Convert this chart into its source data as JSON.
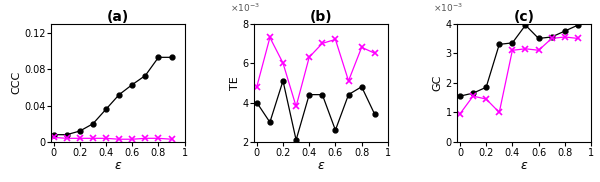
{
  "epsilon": [
    0.0,
    0.1,
    0.2,
    0.3,
    0.4,
    0.5,
    0.6,
    0.7,
    0.8,
    0.9
  ],
  "ccc_yx": [
    0.008,
    0.008,
    0.012,
    0.02,
    0.036,
    0.052,
    0.063,
    0.073,
    0.093,
    0.093
  ],
  "ccc_xy": [
    0.005,
    0.004,
    0.004,
    0.004,
    0.004,
    0.003,
    0.003,
    0.004,
    0.004,
    0.003
  ],
  "te_yx": [
    0.004,
    0.003,
    0.0051,
    0.0021,
    0.0044,
    0.0044,
    0.0026,
    0.0044,
    0.0048,
    0.0034
  ],
  "te_xy": [
    0.0048,
    0.0073,
    0.006,
    0.0038,
    0.0063,
    0.007,
    0.0072,
    0.0051,
    0.0068,
    0.0065
  ],
  "gc_yx": [
    0.00155,
    0.00165,
    0.00185,
    0.0033,
    0.00335,
    0.00395,
    0.0035,
    0.00355,
    0.00375,
    0.00395
  ],
  "gc_xy": [
    0.00095,
    0.00155,
    0.00145,
    0.001,
    0.0031,
    0.00315,
    0.0031,
    0.0035,
    0.00355,
    0.0035
  ],
  "black_color": "#000000",
  "magenta_color": "#FF00FF",
  "title_a": "(a)",
  "title_b": "(b)",
  "title_c": "(c)",
  "ylabel_a": "CCC",
  "ylabel_b": "TE",
  "ylabel_c": "GC",
  "xlabel": "ε",
  "ccc_ylim": [
    0,
    0.13
  ],
  "te_ylim": [
    0.002,
    0.008
  ],
  "gc_ylim": [
    0,
    0.004
  ],
  "ccc_yticks": [
    0,
    0.04,
    0.08,
    0.12
  ],
  "te_yticks": [
    0.002,
    0.004,
    0.006,
    0.008
  ],
  "gc_yticks": [
    0,
    0.001,
    0.002,
    0.003,
    0.004
  ],
  "xlim": [
    -0.02,
    1.0
  ],
  "xticks": [
    0,
    0.2,
    0.4,
    0.6,
    0.8,
    1.0
  ]
}
